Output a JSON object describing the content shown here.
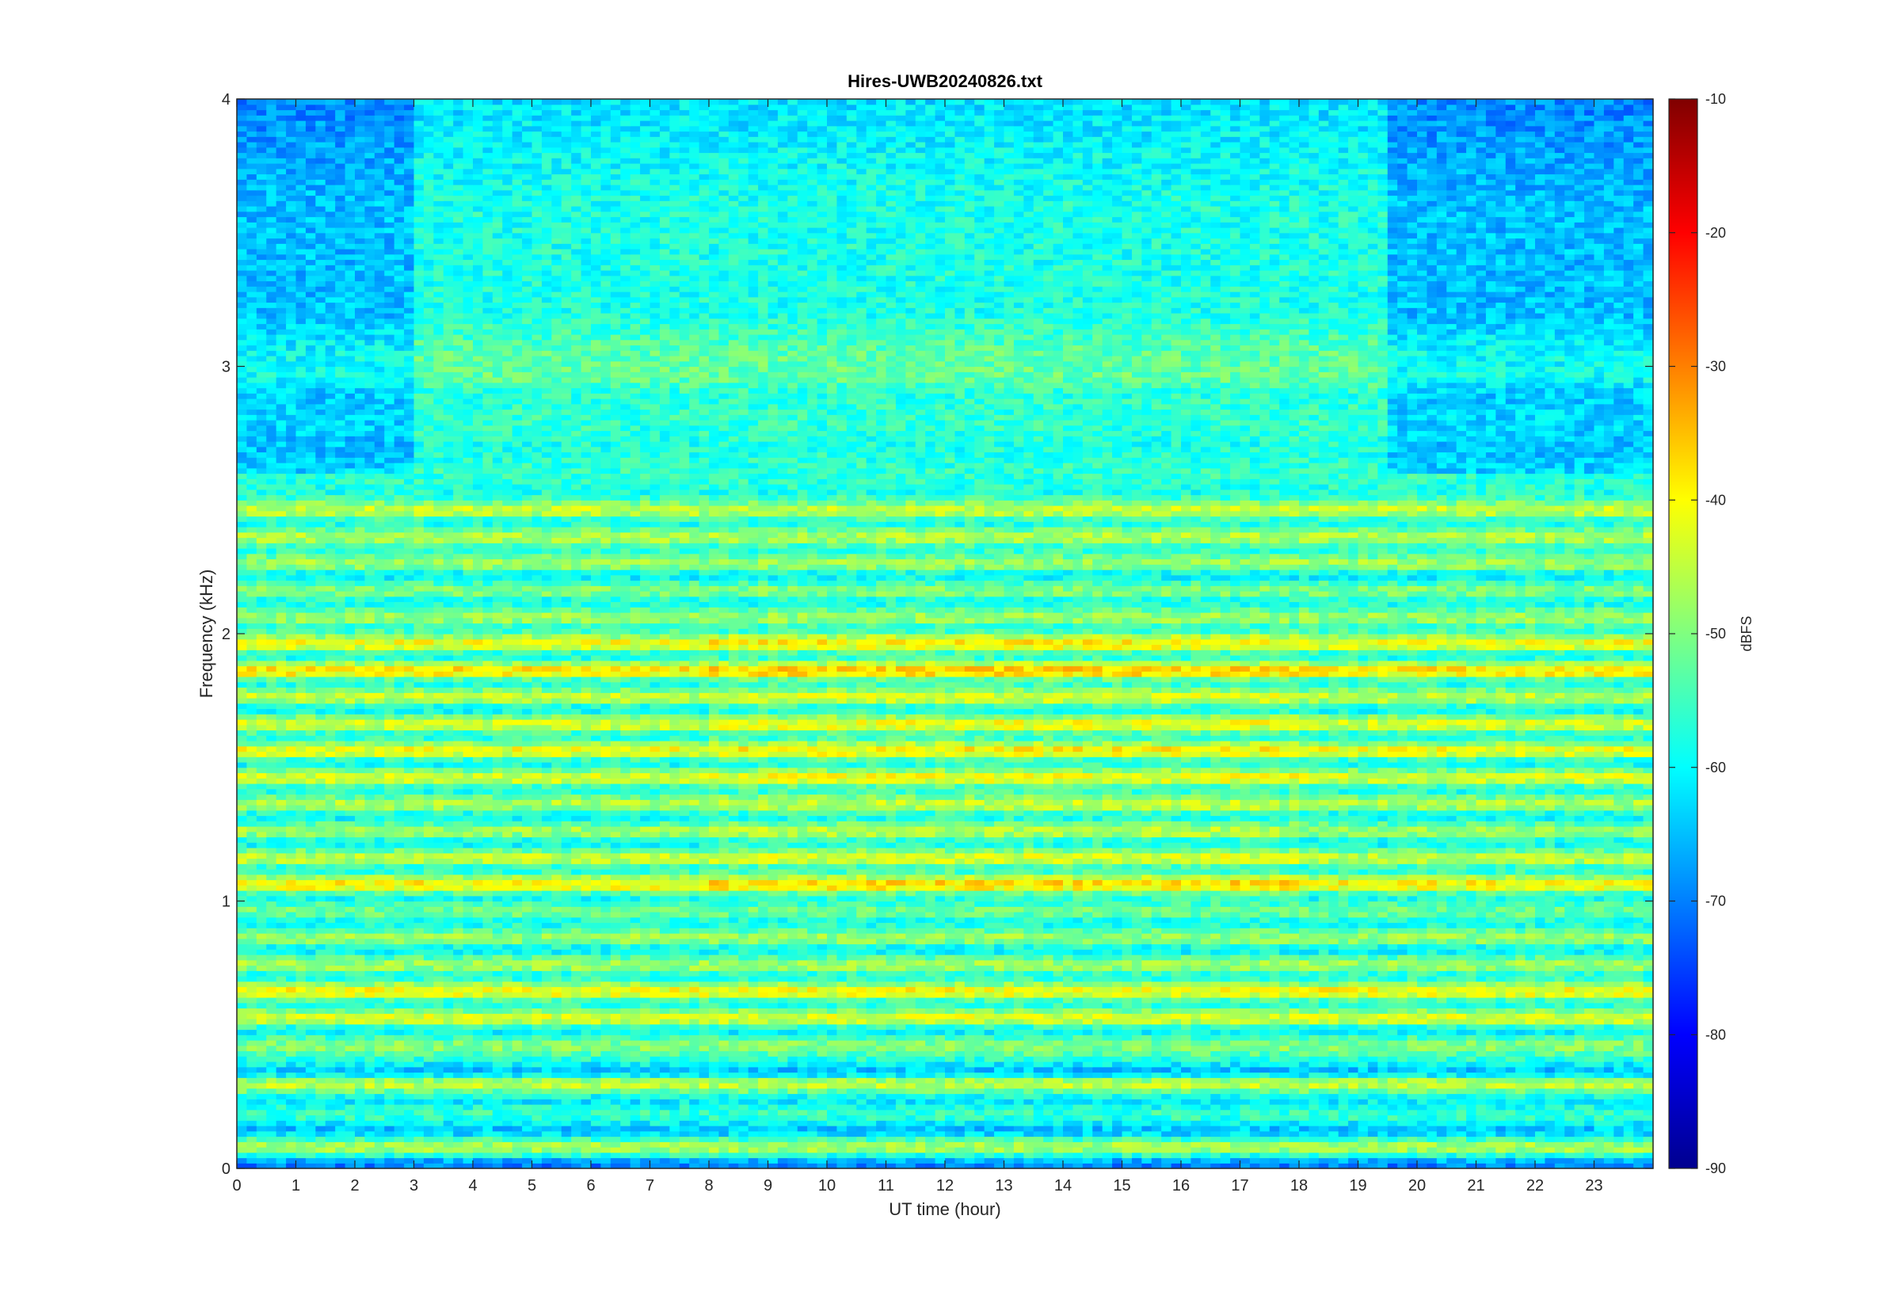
{
  "chart_data": {
    "type": "heatmap",
    "title": "Hires-UWB20240826.txt",
    "xlabel": "UT time (hour)",
    "ylabel": "Frequency (kHz)",
    "xlim": [
      0,
      24
    ],
    "ylim": [
      0,
      4
    ],
    "x_ticks": [
      0,
      1,
      2,
      3,
      4,
      5,
      6,
      7,
      8,
      9,
      10,
      11,
      12,
      13,
      14,
      15,
      16,
      17,
      18,
      19,
      20,
      21,
      22,
      23
    ],
    "x_tick_labels": [
      "0",
      "1",
      "2",
      "3",
      "4",
      "5",
      "6",
      "7",
      "8",
      "9",
      "10",
      "11",
      "12",
      "13",
      "14",
      "15",
      "16",
      "17",
      "18",
      "19",
      "20",
      "21",
      "22",
      "23"
    ],
    "y_ticks": [
      0,
      1,
      2,
      3,
      4
    ],
    "y_tick_labels": [
      "0",
      "1",
      "2",
      "3",
      "4"
    ],
    "colormap": "jet",
    "colorbar": {
      "label": "dBFS",
      "range": [
        -90,
        -10
      ],
      "ticks": [
        -90,
        -80,
        -70,
        -60,
        -50,
        -40,
        -30,
        -20,
        -10
      ],
      "tick_labels": [
        "-90",
        "-80",
        "-70",
        "-60",
        "-50",
        "-40",
        "-30",
        "-20",
        "-10"
      ]
    },
    "band_levels": {
      "frequency_kHz": [
        0.02,
        0.08,
        0.14,
        0.2,
        0.26,
        0.32,
        0.36,
        0.42,
        0.46,
        0.52,
        0.56,
        0.62,
        0.66,
        0.72,
        0.76,
        0.82,
        0.86,
        0.92,
        0.96,
        1.02,
        1.06,
        1.12,
        1.16,
        1.22,
        1.26,
        1.32,
        1.36,
        1.42,
        1.46,
        1.52,
        1.56,
        1.62,
        1.66,
        1.72,
        1.76,
        1.82,
        1.86,
        1.92,
        1.96,
        2.02,
        2.06,
        2.12,
        2.16,
        2.22,
        2.26,
        2.32,
        2.36,
        2.42,
        2.46,
        2.52,
        2.6,
        2.7,
        2.8,
        2.9,
        2.96,
        3.06,
        3.2,
        3.4,
        3.6,
        3.8,
        3.96
      ],
      "typical_dBFS": [
        -70,
        -44,
        -66,
        -55,
        -62,
        -42,
        -66,
        -55,
        -48,
        -62,
        -40,
        -60,
        -37,
        -60,
        -45,
        -62,
        -46,
        -60,
        -50,
        -60,
        -36,
        -60,
        -42,
        -62,
        -45,
        -62,
        -44,
        -60,
        -40,
        -62,
        -38,
        -60,
        -40,
        -62,
        -42,
        -60,
        -34,
        -62,
        -38,
        -58,
        -46,
        -60,
        -48,
        -62,
        -46,
        -58,
        -44,
        -60,
        -42,
        -58,
        -56,
        -58,
        -56,
        -57,
        -52,
        -53,
        -58,
        -58,
        -58,
        -60,
        -62
      ]
    },
    "notes": "Spectrogram: horizontal harmonic bands roughly every 0.1 kHz; strongest near 1.85, 1.95, 1.65, 1.55, 1.05, 0.65 and 2.45 kHz; quieter (bluer) above 2.6 kHz before 3 h and after 19.5 h."
  },
  "colors": {
    "background": "#ffffff",
    "axes": "#262626"
  }
}
